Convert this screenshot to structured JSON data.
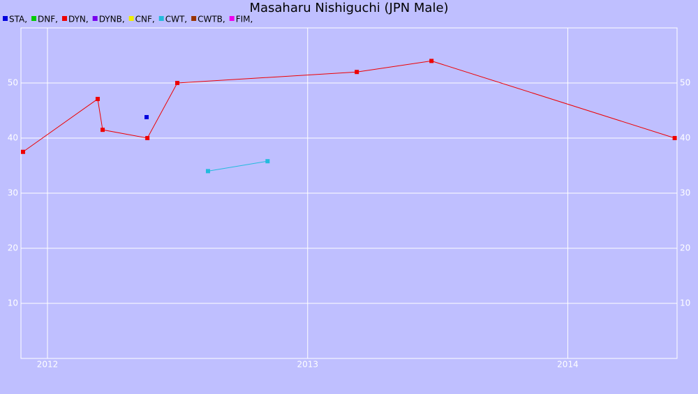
{
  "chart_data": {
    "type": "line",
    "title": "Masaharu Nishiguchi (JPN Male)",
    "series": [
      {
        "name": "STA,",
        "color": "#0000dd",
        "x": [
          2012.381
        ],
        "values": [
          43.8
        ]
      },
      {
        "name": "DNF,",
        "color": "#00cc00",
        "x": [],
        "values": []
      },
      {
        "name": "DYN,",
        "color": "#ee0000",
        "x": [
          2011.906,
          2012.193,
          2012.212,
          2012.384,
          2012.499,
          2013.189,
          2013.476,
          2014.411
        ],
        "values": [
          37.5,
          47.1,
          41.5,
          40,
          50,
          52,
          54,
          40
        ]
      },
      {
        "name": "DYNB,",
        "color": "#7700ee",
        "x": [],
        "values": []
      },
      {
        "name": "CNF,",
        "color": "#eeee00",
        "x": [],
        "values": []
      },
      {
        "name": "CWT,",
        "color": "#22bbdd",
        "x": [
          2012.617,
          2012.846
        ],
        "values": [
          34.0,
          35.8
        ]
      },
      {
        "name": "CWTB,",
        "color": "#993300",
        "x": [],
        "values": []
      },
      {
        "name": "FIM,",
        "color": "#ee00ee",
        "x": [],
        "values": []
      }
    ],
    "xlim": [
      2011.898,
      2014.42
    ],
    "xticks": [
      2012,
      2013,
      2014
    ],
    "ylim": [
      0,
      60
    ],
    "yticks": [
      10,
      20,
      30,
      40,
      50
    ],
    "grid": true
  }
}
